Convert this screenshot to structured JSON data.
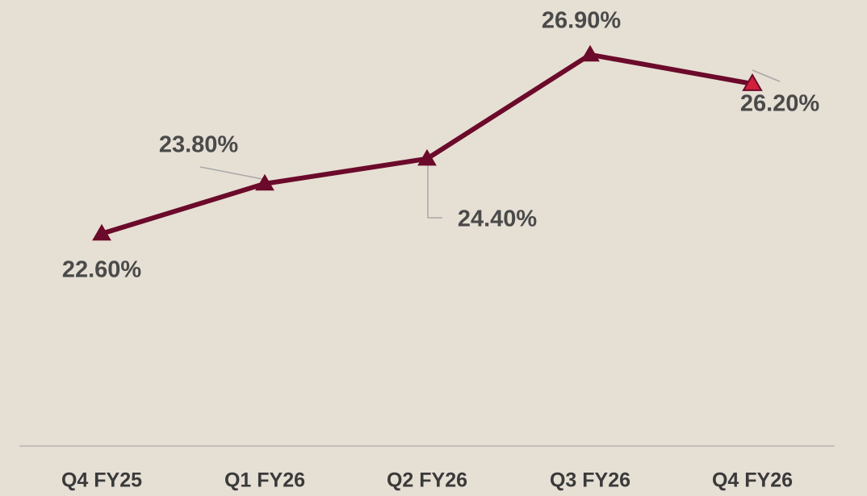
{
  "chart_data": {
    "type": "line",
    "categories": [
      "Q4 FY25",
      "Q1 FY26",
      "Q2 FY26",
      "Q3 FY26",
      "Q4 FY26"
    ],
    "values": [
      22.6,
      23.8,
      24.4,
      26.9,
      26.2
    ],
    "value_labels": [
      "22.60%",
      "23.80%",
      "24.40%",
      "26.90%",
      "26.20%"
    ],
    "color": "#6b0a2a",
    "last_marker_color": "#d21f3c",
    "ylim": [
      17.5,
      28
    ]
  }
}
